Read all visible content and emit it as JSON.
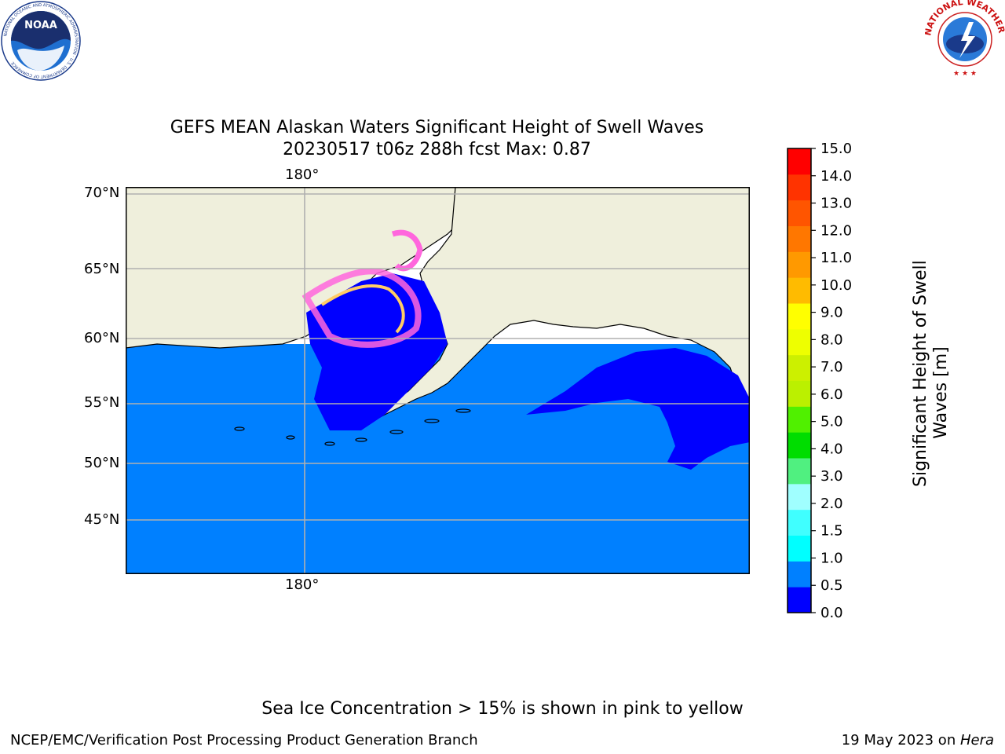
{
  "header": {
    "title_line1": "GEFS MEAN Alaskan Waters Significant Height of Swell Waves",
    "title_line2": "20230517 t06z 288h fcst   Max: 0.87"
  },
  "logos": {
    "left": {
      "name": "NOAA",
      "ring_text": "NATIONAL OCEANIC AND ATMOSPHERIC ADMINISTRATION",
      "bottom_text": "U.S. DEPARTMENT OF COMMERCE"
    },
    "right": {
      "ring_text": "NATIONAL WEATHER SERVICE"
    }
  },
  "map": {
    "lon_labels": [
      "180°",
      "180°"
    ],
    "lat_labels": [
      "70°N",
      "65°N",
      "60°N",
      "55°N",
      "50°N",
      "45°N"
    ],
    "colors": {
      "land": "#efefdc",
      "ocean_low": "#0080ff",
      "ocean_zero": "#0000ff",
      "grid": "#b0b0b0"
    }
  },
  "colorbar": {
    "label_line1": "Significant Height of Swell",
    "label_line2": "Waves [m]",
    "ticks": [
      "0.0",
      "0.5",
      "1.0",
      "1.5",
      "2.0",
      "3.0",
      "4.0",
      "5.0",
      "6.0",
      "7.0",
      "8.0",
      "9.0",
      "10.0",
      "11.0",
      "12.0",
      "13.0",
      "14.0",
      "15.0"
    ],
    "colors": [
      "#0000ff",
      "#0080ff",
      "#00ffff",
      "#40ffff",
      "#a0ffff",
      "#50f080",
      "#00dd00",
      "#50f000",
      "#bbf000",
      "#ccf000",
      "#eeff00",
      "#ffff00",
      "#ffbb00",
      "#ff9900",
      "#ff7700",
      "#ff5500",
      "#ff3300",
      "#ff0000"
    ]
  },
  "note": "Sea Ice Concentration > 15% is shown in pink to yellow",
  "footer": {
    "left": "NCEP/EMC/Verification Post Processing Product Generation Branch",
    "right_date": "19 May 2023 on ",
    "right_machine": "Hera"
  }
}
